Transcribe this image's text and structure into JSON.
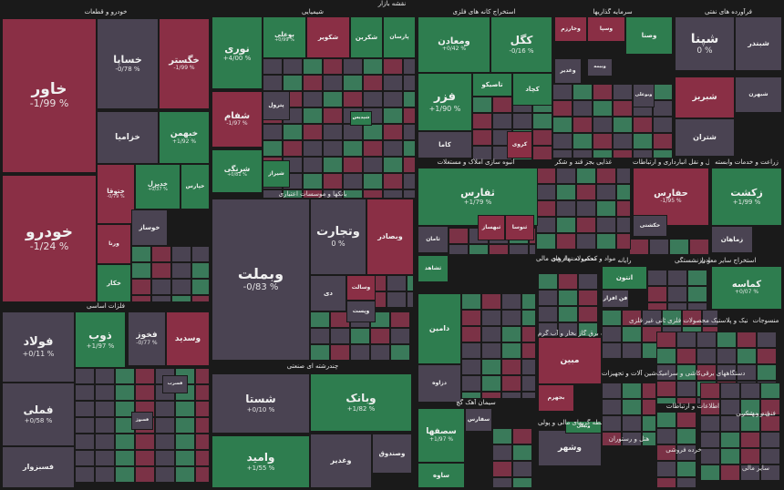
{
  "page_title": "نقشه بازار",
  "colors": {
    "up_strong": "#2e7d4f",
    "up": "#3a7a5a",
    "flat": "#4a4352",
    "down": "#7b3246",
    "down_strong": "#8a2f45",
    "bg": "#1a1a1a"
  },
  "chart_data": {
    "type": "treemap",
    "title": "نقشه بازار",
    "sectors": [
      {
        "name": "خودرو و قطعات",
        "tiles": [
          {
            "name": "خاور",
            "change": "-1/99 %",
            "trend": "down"
          },
          {
            "name": "خودرو",
            "change": "-1/24 %",
            "trend": "down"
          },
          {
            "name": "خساپا",
            "change": "-0/78 %",
            "trend": "flat"
          },
          {
            "name": "خگستر",
            "change": "-1/99 %",
            "trend": "down"
          },
          {
            "name": "خزامیا",
            "change": "",
            "trend": "flat"
          },
          {
            "name": "خبهمن",
            "change": "+1/92 %",
            "trend": "up"
          },
          {
            "name": "ختوقا",
            "change": "-0/79 %",
            "trend": "down"
          },
          {
            "name": "خدیزل",
            "change": "+0/37 %",
            "trend": "up"
          },
          {
            "name": "خپارس",
            "change": "",
            "trend": "up"
          },
          {
            "name": "ورنا",
            "change": "",
            "trend": "down"
          },
          {
            "name": "خوساز",
            "change": "",
            "trend": "flat"
          },
          {
            "name": "خکار",
            "change": "",
            "trend": "up"
          }
        ]
      },
      {
        "name": "فلزات اساسی",
        "tiles": [
          {
            "name": "فولاد",
            "change": "+0/11 %",
            "trend": "flat"
          },
          {
            "name": "فملی",
            "change": "+0/58 %",
            "trend": "flat"
          },
          {
            "name": "فسرب",
            "change": "",
            "trend": "flat"
          },
          {
            "name": "فسوژ",
            "change": "",
            "trend": "flat"
          },
          {
            "name": "فسبزوار",
            "change": "",
            "trend": "flat"
          },
          {
            "name": "ذوب",
            "change": "+1/97 %",
            "trend": "up"
          },
          {
            "name": "فخوز",
            "change": "-0/77 %",
            "trend": "flat"
          },
          {
            "name": "وسدید",
            "change": "",
            "trend": "down"
          }
        ]
      },
      {
        "name": "شیمیایی",
        "tiles": [
          {
            "name": "نوری",
            "change": "+4/00 %",
            "trend": "up"
          },
          {
            "name": "شفام",
            "change": "-1/97 %",
            "trend": "down"
          },
          {
            "name": "شرنگی",
            "change": "+0/81 %",
            "trend": "up"
          },
          {
            "name": "بوعلی",
            "change": "+0/99 %",
            "trend": "up"
          },
          {
            "name": "شکویر",
            "change": "",
            "trend": "down"
          },
          {
            "name": "شکربن",
            "change": "",
            "trend": "up"
          },
          {
            "name": "پارسان",
            "change": "",
            "trend": "up"
          },
          {
            "name": "پترول",
            "change": "",
            "trend": "flat"
          },
          {
            "name": "شپدیس",
            "change": "",
            "trend": "up"
          },
          {
            "name": "شیراز",
            "change": "",
            "trend": "up"
          }
        ]
      },
      {
        "name": "بانکها و موسسات اعتباری",
        "tiles": [
          {
            "name": "وبملت",
            "change": "-0/83 %",
            "trend": "flat"
          },
          {
            "name": "وتجارت",
            "change": "0 %",
            "trend": "flat"
          },
          {
            "name": "وبصادر",
            "change": "",
            "trend": "down"
          },
          {
            "name": "دی",
            "change": "",
            "trend": "flat"
          },
          {
            "name": "وپست",
            "change": "",
            "trend": "flat"
          },
          {
            "name": "وسالت",
            "change": "",
            "trend": "down"
          }
        ]
      },
      {
        "name": "استخراج کانه های فلزی",
        "tiles": [
          {
            "name": "ومعادن",
            "change": "+0/42 %",
            "trend": "up"
          },
          {
            "name": "کگل",
            "change": "-0/16 %",
            "trend": "up"
          },
          {
            "name": "فزر",
            "change": "+1/90 %",
            "trend": "up"
          },
          {
            "name": "تاصیکو",
            "change": "",
            "trend": "up"
          },
          {
            "name": "کچاد",
            "change": "",
            "trend": "up"
          },
          {
            "name": "کاما",
            "change": "",
            "trend": "flat"
          },
          {
            "name": "کروی",
            "change": "",
            "trend": "down"
          }
        ]
      },
      {
        "name": "سرمایه گذاریها",
        "tiles": [
          {
            "name": "وخارزم",
            "change": "",
            "trend": "down"
          },
          {
            "name": "وسپا",
            "change": "",
            "trend": "down"
          },
          {
            "name": "وغدیر",
            "change": "",
            "trend": "flat"
          },
          {
            "name": "وبیمه",
            "change": "",
            "trend": "flat"
          },
          {
            "name": "وصنا",
            "change": "",
            "trend": "up"
          },
          {
            "name": "وبوعلی",
            "change": "",
            "trend": "flat"
          }
        ]
      },
      {
        "name": "فرآورده های نفتی",
        "tiles": [
          {
            "name": "شپنا",
            "change": "0 %",
            "trend": "flat"
          },
          {
            "name": "شبندر",
            "change": "",
            "trend": "flat"
          },
          {
            "name": "شبریز",
            "change": "",
            "trend": "down"
          },
          {
            "name": "شتران",
            "change": "",
            "trend": "flat"
          },
          {
            "name": "شبهرن",
            "change": "",
            "trend": "flat"
          }
        ]
      },
      {
        "name": "انبوه سازی املاک و مستغلات",
        "tiles": [
          {
            "name": "ثفارس",
            "change": "+1/79 %",
            "trend": "up"
          },
          {
            "name": "ثشاهد",
            "change": "",
            "trend": "up"
          },
          {
            "name": "ثبهساز",
            "change": "",
            "trend": "down"
          },
          {
            "name": "ثامان",
            "change": "",
            "trend": "flat"
          },
          {
            "name": "ثنوسا",
            "change": "",
            "trend": "down"
          }
        ]
      },
      {
        "name": "زراعت و خدمات وابسته",
        "tiles": [
          {
            "name": "زکشت",
            "change": "+1/99 %",
            "trend": "up"
          },
          {
            "name": "زماهان",
            "change": "",
            "trend": "flat"
          }
        ]
      },
      {
        "name": "حمل و نقل انبارداری و ارتباطات",
        "tiles": [
          {
            "name": "حفارس",
            "change": "-1/95 %",
            "trend": "down"
          },
          {
            "name": "حکشتی",
            "change": "",
            "trend": "flat"
          }
        ]
      },
      {
        "name": "استخراج سایر معادن",
        "tiles": [
          {
            "name": "کماسه",
            "change": "+0/07 %",
            "trend": "up"
          }
        ]
      },
      {
        "name": "چندرشته ای صنعتی",
        "tiles": [
          {
            "name": "شستا",
            "change": "+0/10 %",
            "trend": "flat"
          },
          {
            "name": "وامید",
            "change": "+1/55 %",
            "trend": "up"
          },
          {
            "name": "وبانک",
            "change": "+1/82 %",
            "trend": "up"
          },
          {
            "name": "وصندوق",
            "change": "",
            "trend": "flat"
          },
          {
            "name": "وغدیر",
            "change": "",
            "trend": "flat"
          }
        ]
      },
      {
        "name": "سیمان آهک گچ",
        "tiles": [
          {
            "name": "سصفها",
            "change": "+1/97 %",
            "trend": "up"
          },
          {
            "name": "ساوه",
            "change": "",
            "trend": "up"
          },
          {
            "name": "سفارس",
            "change": "",
            "trend": "flat"
          }
        ]
      },
      {
        "name": "عرضه برق گاز بخار و آب گرم",
        "tiles": [
          {
            "name": "مبین",
            "change": "",
            "trend": "down"
          },
          {
            "name": "بجهرم",
            "change": "",
            "trend": "down"
          }
        ]
      },
      {
        "name": "واسطه گریهای مالی و پولی",
        "tiles": [
          {
            "name": "وشهر",
            "change": "",
            "trend": "flat"
          },
          {
            "name": "ونیکی",
            "change": "",
            "trend": "up"
          }
        ]
      },
      {
        "name": "مواد و محصولات دارویی",
        "tiles": [
          {
            "name": "دامین",
            "change": "",
            "trend": "up"
          },
          {
            "name": "دزاوه",
            "change": "",
            "trend": "flat"
          }
        ]
      },
      {
        "name": "رایانه",
        "tiles": [
          {
            "name": "انتون",
            "change": "",
            "trend": "up"
          },
          {
            "name": "فن افزار",
            "change": "",
            "trend": "flat"
          }
        ]
      }
    ],
    "section_labels": [
      "محصولات فلزی",
      "کانی غیر فلزی",
      "اطلاعات و ارتباطات",
      "لاستیک و پلاستیک",
      "ماشین آلات و تجهیزات",
      "کاشی و سرامیک",
      "دستگاههای برقی",
      "هتل و رستوران",
      "خرده فروشی",
      "فنی و مهندسی",
      "بیمه و بازنشستگی",
      "قند و شکر",
      "منسوجات",
      "سایر مالی",
      "غذایی بجز قند و شکر",
      "فعالیتهای کمکی به نهاد های مالی",
      "ساخت رادیو",
      "محصولات چوبی",
      "محصولات کاغذی"
    ]
  }
}
